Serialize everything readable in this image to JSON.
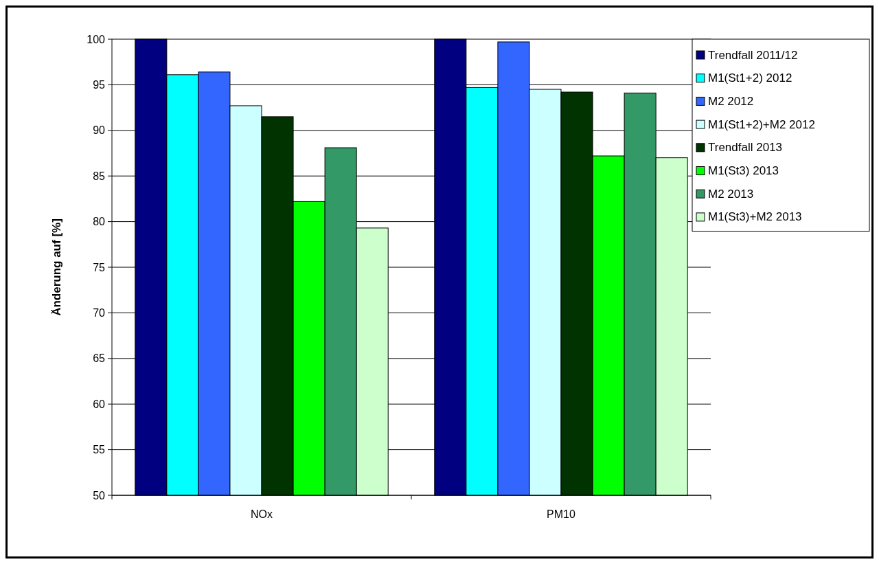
{
  "chart_data": {
    "type": "bar",
    "ylabel": "Änderung auf [%]",
    "categories": [
      "NOx",
      "PM10"
    ],
    "series": [
      {
        "name": "Trendfall 2011/12",
        "color": "#000080",
        "values": [
          100,
          100
        ]
      },
      {
        "name": "M1(St1+2) 2012",
        "color": "#00ffff",
        "values": [
          96.1,
          94.7
        ]
      },
      {
        "name": "M2 2012",
        "color": "#3366ff",
        "values": [
          96.4,
          99.7
        ]
      },
      {
        "name": "M1(St1+2)+M2 2012",
        "color": "#ccffff",
        "values": [
          92.7,
          94.5
        ]
      },
      {
        "name": "Trendfall 2013",
        "color": "#003300",
        "values": [
          91.5,
          94.2
        ]
      },
      {
        "name": "M1(St3) 2013",
        "color": "#00ff00",
        "values": [
          82.2,
          87.2
        ]
      },
      {
        "name": "M2 2013",
        "color": "#339966",
        "values": [
          88.1,
          94.1
        ]
      },
      {
        "name": "M1(St3)+M2 2013",
        "color": "#ccffcc",
        "values": [
          79.3,
          87.0
        ]
      }
    ],
    "ylim": [
      50,
      100
    ],
    "yticks": [
      50,
      55,
      60,
      65,
      70,
      75,
      80,
      85,
      90,
      95,
      100
    ],
    "grid": "y",
    "legend": "top right"
  }
}
